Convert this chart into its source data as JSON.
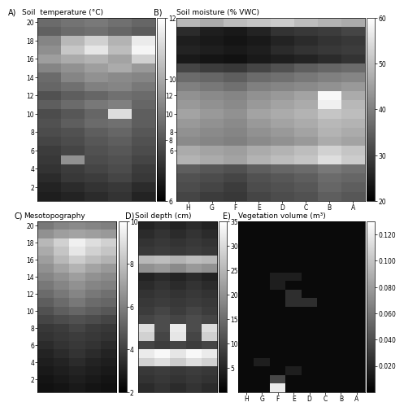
{
  "temp_data": [
    [
      0.42,
      0.45,
      0.48,
      0.44,
      0.4
    ],
    [
      0.38,
      0.42,
      0.44,
      0.4,
      0.36
    ],
    [
      0.52,
      0.72,
      0.82,
      0.7,
      0.92
    ],
    [
      0.56,
      0.78,
      0.9,
      0.74,
      0.96
    ],
    [
      0.62,
      0.67,
      0.7,
      0.64,
      0.82
    ],
    [
      0.52,
      0.57,
      0.62,
      0.67,
      0.6
    ],
    [
      0.42,
      0.52,
      0.57,
      0.54,
      0.52
    ],
    [
      0.4,
      0.44,
      0.5,
      0.52,
      0.47
    ],
    [
      0.32,
      0.37,
      0.4,
      0.44,
      0.42
    ],
    [
      0.37,
      0.42,
      0.47,
      0.5,
      0.4
    ],
    [
      0.3,
      0.34,
      0.4,
      0.87,
      0.37
    ],
    [
      0.32,
      0.37,
      0.42,
      0.44,
      0.37
    ],
    [
      0.3,
      0.32,
      0.37,
      0.4,
      0.34
    ],
    [
      0.27,
      0.3,
      0.34,
      0.37,
      0.32
    ],
    [
      0.24,
      0.27,
      0.32,
      0.34,
      0.3
    ],
    [
      0.22,
      0.57,
      0.3,
      0.32,
      0.27
    ],
    [
      0.2,
      0.24,
      0.27,
      0.3,
      0.24
    ],
    [
      0.17,
      0.22,
      0.24,
      0.27,
      0.22
    ],
    [
      0.14,
      0.17,
      0.2,
      0.22,
      0.17
    ],
    [
      0.12,
      0.14,
      0.17,
      0.2,
      0.14
    ]
  ],
  "moist_data": [
    [
      0.72,
      0.67,
      0.74,
      0.77,
      0.8,
      0.74,
      0.7,
      0.67
    ],
    [
      0.17,
      0.12,
      0.1,
      0.14,
      0.2,
      0.22,
      0.24,
      0.27
    ],
    [
      0.12,
      0.1,
      0.08,
      0.1,
      0.14,
      0.17,
      0.2,
      0.22
    ],
    [
      0.14,
      0.12,
      0.1,
      0.12,
      0.17,
      0.2,
      0.22,
      0.24
    ],
    [
      0.1,
      0.08,
      0.07,
      0.1,
      0.12,
      0.14,
      0.17,
      0.2
    ],
    [
      0.27,
      0.24,
      0.22,
      0.27,
      0.32,
      0.37,
      0.4,
      0.42
    ],
    [
      0.42,
      0.4,
      0.37,
      0.42,
      0.44,
      0.47,
      0.5,
      0.52
    ],
    [
      0.5,
      0.47,
      0.44,
      0.5,
      0.52,
      0.54,
      0.57,
      0.6
    ],
    [
      0.57,
      0.54,
      0.52,
      0.57,
      0.6,
      0.64,
      0.97,
      0.67
    ],
    [
      0.6,
      0.57,
      0.54,
      0.6,
      0.64,
      0.67,
      0.94,
      0.72
    ],
    [
      0.64,
      0.6,
      0.57,
      0.64,
      0.67,
      0.7,
      0.77,
      0.74
    ],
    [
      0.6,
      0.57,
      0.54,
      0.6,
      0.64,
      0.67,
      0.72,
      0.7
    ],
    [
      0.57,
      0.54,
      0.52,
      0.57,
      0.6,
      0.64,
      0.7,
      0.67
    ],
    [
      0.54,
      0.52,
      0.5,
      0.54,
      0.57,
      0.6,
      0.67,
      0.64
    ],
    [
      0.67,
      0.64,
      0.62,
      0.67,
      0.7,
      0.74,
      0.82,
      0.77
    ],
    [
      0.7,
      0.67,
      0.64,
      0.7,
      0.74,
      0.77,
      0.87,
      0.8
    ],
    [
      0.37,
      0.34,
      0.32,
      0.37,
      0.4,
      0.42,
      0.47,
      0.44
    ],
    [
      0.32,
      0.3,
      0.27,
      0.32,
      0.34,
      0.37,
      0.42,
      0.4
    ],
    [
      0.3,
      0.27,
      0.24,
      0.3,
      0.32,
      0.34,
      0.4,
      0.37
    ],
    [
      0.27,
      0.24,
      0.22,
      0.27,
      0.3,
      0.32,
      0.37,
      0.34
    ]
  ],
  "meso_data": [
    [
      0.47,
      0.52,
      0.54,
      0.52,
      0.5
    ],
    [
      0.57,
      0.62,
      0.64,
      0.62,
      0.6
    ],
    [
      0.72,
      0.82,
      0.94,
      0.87,
      0.82
    ],
    [
      0.67,
      0.77,
      0.9,
      0.82,
      0.77
    ],
    [
      0.62,
      0.72,
      0.8,
      0.74,
      0.7
    ],
    [
      0.57,
      0.64,
      0.7,
      0.64,
      0.6
    ],
    [
      0.52,
      0.57,
      0.62,
      0.57,
      0.54
    ],
    [
      0.47,
      0.52,
      0.57,
      0.52,
      0.5
    ],
    [
      0.42,
      0.47,
      0.52,
      0.47,
      0.44
    ],
    [
      0.37,
      0.42,
      0.47,
      0.42,
      0.4
    ],
    [
      0.32,
      0.37,
      0.4,
      0.37,
      0.34
    ],
    [
      0.27,
      0.3,
      0.32,
      0.3,
      0.27
    ],
    [
      0.22,
      0.24,
      0.27,
      0.24,
      0.22
    ],
    [
      0.2,
      0.22,
      0.24,
      0.22,
      0.2
    ],
    [
      0.17,
      0.2,
      0.22,
      0.2,
      0.17
    ],
    [
      0.14,
      0.17,
      0.2,
      0.17,
      0.14
    ],
    [
      0.12,
      0.14,
      0.17,
      0.14,
      0.12
    ],
    [
      0.1,
      0.12,
      0.14,
      0.12,
      0.1
    ],
    [
      0.08,
      0.1,
      0.12,
      0.1,
      0.08
    ],
    [
      0.07,
      0.08,
      0.1,
      0.08,
      0.07
    ]
  ],
  "peat_data": [
    [
      0.14,
      0.17,
      0.14,
      0.17,
      0.14
    ],
    [
      0.17,
      0.2,
      0.17,
      0.2,
      0.17
    ],
    [
      0.2,
      0.22,
      0.2,
      0.22,
      0.2
    ],
    [
      0.22,
      0.24,
      0.22,
      0.24,
      0.22
    ],
    [
      0.72,
      0.74,
      0.7,
      0.74,
      0.72
    ],
    [
      0.57,
      0.6,
      0.54,
      0.6,
      0.57
    ],
    [
      0.14,
      0.17,
      0.14,
      0.17,
      0.14
    ],
    [
      0.17,
      0.2,
      0.17,
      0.2,
      0.17
    ],
    [
      0.2,
      0.22,
      0.2,
      0.22,
      0.2
    ],
    [
      0.22,
      0.24,
      0.22,
      0.24,
      0.22
    ],
    [
      0.24,
      0.27,
      0.24,
      0.27,
      0.24
    ],
    [
      0.27,
      0.3,
      0.27,
      0.3,
      0.27
    ],
    [
      0.87,
      0.3,
      0.92,
      0.3,
      0.87
    ],
    [
      0.82,
      0.27,
      0.9,
      0.27,
      0.82
    ],
    [
      0.27,
      0.24,
      0.27,
      0.24,
      0.27
    ],
    [
      0.92,
      0.97,
      0.9,
      0.97,
      0.92
    ],
    [
      0.82,
      0.87,
      0.8,
      0.87,
      0.82
    ],
    [
      0.22,
      0.24,
      0.22,
      0.24,
      0.22
    ],
    [
      0.2,
      0.22,
      0.2,
      0.22,
      0.2
    ],
    [
      0.17,
      0.2,
      0.17,
      0.2,
      0.17
    ]
  ],
  "veg_data_bright_row": 19,
  "veg_data_bright_col": 2,
  "panel_A_title": "Soil  temperature (°C)",
  "panel_B_title": "Soil moisture (% VWC)",
  "panel_C_title": "Mesotopography",
  "panel_D_title": "Soil depth (cm)",
  "panel_E_title": "Vegetation volume (m³)",
  "cbar_A_ticks": [
    6,
    8,
    10,
    12
  ],
  "cbar_B_ticks": [
    20,
    30,
    40,
    50,
    60
  ],
  "cbar_C_ticks": [
    2,
    4,
    6,
    8,
    10
  ],
  "cbar_D_ticks": [
    5,
    10,
    15,
    20,
    25,
    30,
    35
  ],
  "cbar_E_ticks": [
    0.02,
    0.04,
    0.06,
    0.08,
    0.1,
    0.12
  ],
  "yticks_AB": [
    2,
    4,
    6,
    8,
    10,
    12,
    14,
    16,
    18,
    20
  ],
  "xticks_BE": [
    "H",
    "G",
    "F",
    "E",
    "D",
    "C",
    "B",
    "A"
  ],
  "bg_color": "#ffffff"
}
